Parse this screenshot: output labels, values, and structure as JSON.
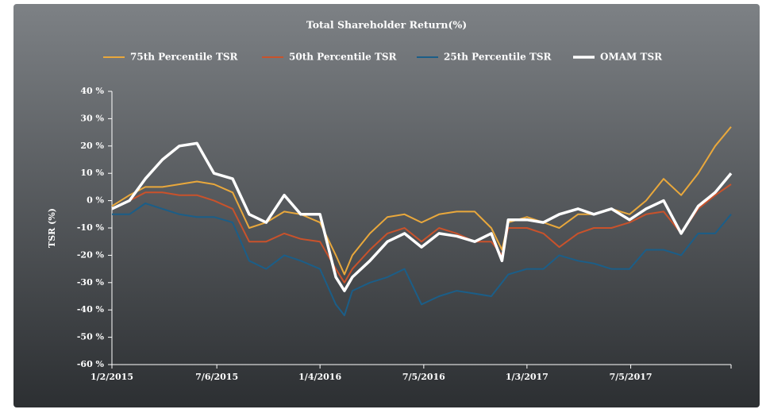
{
  "chart_data": {
    "type": "line",
    "title": "Total Shareholder Return(%)",
    "y_label": "TSR (%)",
    "x": [
      "1/2/2015",
      "2/2/2015",
      "3/2/2015",
      "4/1/2015",
      "5/1/2015",
      "6/1/2015",
      "7/1/2015",
      "8/3/2015",
      "9/1/2015",
      "10/1/2015",
      "11/2/2015",
      "12/1/2015",
      "1/4/2016",
      "2/1/2016",
      "2/16/2016",
      "3/1/2016",
      "4/1/2016",
      "5/2/2016",
      "6/1/2016",
      "7/1/2016",
      "8/1/2016",
      "9/1/2016",
      "10/3/2016",
      "11/1/2016",
      "11/20/2016",
      "12/1/2016",
      "1/3/2017",
      "2/1/2017",
      "3/1/2017",
      "4/3/2017",
      "5/1/2017",
      "6/1/2017",
      "7/3/2017",
      "8/1/2017",
      "9/1/2017",
      "10/2/2017",
      "11/1/2017",
      "12/1/2017",
      "12/29/2017"
    ],
    "series": [
      {
        "name": "75th Percentile TSR",
        "color": "#e9a83c",
        "width": 2,
        "values": [
          -2,
          2,
          5,
          5,
          6,
          7,
          6,
          3,
          -10,
          -8,
          -4,
          -5,
          -8,
          -20,
          -27,
          -20,
          -12,
          -6,
          -5,
          -8,
          -5,
          -4,
          -4,
          -10,
          -18,
          -8,
          -6,
          -8,
          -10,
          -5,
          -5,
          -3,
          -5,
          0,
          8,
          2,
          10,
          20,
          27
        ]
      },
      {
        "name": "50th Percentile TSR",
        "color": "#c9522b",
        "width": 2,
        "values": [
          -3,
          0,
          3,
          3,
          2,
          2,
          0,
          -3,
          -15,
          -15,
          -12,
          -14,
          -15,
          -25,
          -30,
          -25,
          -18,
          -12,
          -10,
          -15,
          -10,
          -12,
          -15,
          -15,
          -20,
          -10,
          -10,
          -12,
          -17,
          -12,
          -10,
          -10,
          -8,
          -5,
          -4,
          -12,
          -3,
          2,
          6
        ]
      },
      {
        "name": "25th Percentile TSR",
        "color": "#1b5e88",
        "width": 2,
        "values": [
          -5,
          -5,
          -1,
          -3,
          -5,
          -6,
          -6,
          -8,
          -22,
          -25,
          -20,
          -22,
          -25,
          -38,
          -42,
          -33,
          -30,
          -28,
          -25,
          -38,
          -35,
          -33,
          -34,
          -35,
          -30,
          -27,
          -25,
          -25,
          -20,
          -22,
          -23,
          -25,
          -25,
          -18,
          -18,
          -20,
          -12,
          -12,
          -5
        ]
      },
      {
        "name": "OMAM TSR",
        "color": "#ffffff",
        "width": 3.5,
        "values": [
          -3,
          0,
          8,
          15,
          20,
          21,
          10,
          8,
          -5,
          -8,
          2,
          -5,
          -5,
          -28,
          -33,
          -28,
          -22,
          -15,
          -12,
          -17,
          -12,
          -13,
          -15,
          -12,
          -22,
          -7,
          -7,
          -8,
          -5,
          -3,
          -5,
          -3,
          -7,
          -3,
          0,
          -12,
          -2,
          3,
          10
        ]
      }
    ],
    "xlim": [
      "1/2/2015",
      "12/29/2017"
    ],
    "xticks": [
      "1/2/2015",
      "7/6/2015",
      "1/4/2016",
      "7/5/2016",
      "1/3/2017",
      "7/5/2017"
    ],
    "ylim": [
      -60,
      40
    ],
    "yticks": [
      {
        "value": 40,
        "label": "40 %"
      },
      {
        "value": 30,
        "label": "30 %"
      },
      {
        "value": 20,
        "label": "20 %"
      },
      {
        "value": 10,
        "label": "10 %"
      },
      {
        "value": 0,
        "label": "0 %"
      },
      {
        "value": -10,
        "label": "-10 %"
      },
      {
        "value": -20,
        "label": "-20 %"
      },
      {
        "value": -30,
        "label": "-30 %"
      },
      {
        "value": -40,
        "label": "-40 %"
      },
      {
        "value": -50,
        "label": "-50 %"
      },
      {
        "value": -60,
        "label": "-60 %"
      }
    ],
    "legend": "top"
  }
}
